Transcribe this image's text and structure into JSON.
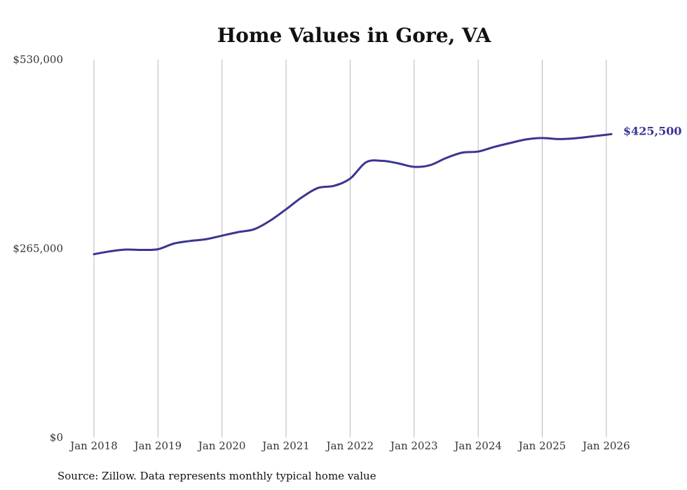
{
  "chart_data": {
    "type": "line",
    "title": "Home Values in Gore, VA",
    "xlabel": "",
    "ylabel": "",
    "ylim": [
      0,
      530000
    ],
    "yticks": [
      {
        "value": 0,
        "label": "$0"
      },
      {
        "value": 265000,
        "label": "$265,000"
      },
      {
        "value": 530000,
        "label": "$530,000"
      }
    ],
    "xticks": [
      {
        "value": 2018.0,
        "label": "Jan 2018"
      },
      {
        "value": 2019.0,
        "label": "Jan 2019"
      },
      {
        "value": 2020.0,
        "label": "Jan 2020"
      },
      {
        "value": 2021.0,
        "label": "Jan 2021"
      },
      {
        "value": 2022.0,
        "label": "Jan 2022"
      },
      {
        "value": 2023.0,
        "label": "Jan 2023"
      },
      {
        "value": 2024.0,
        "label": "Jan 2024"
      },
      {
        "value": 2025.0,
        "label": "Jan 2025"
      },
      {
        "value": 2026.0,
        "label": "Jan 2026"
      }
    ],
    "xlim": [
      2018.0,
      2026.1
    ],
    "grid": "vertical",
    "series": [
      {
        "name": "Typical home value",
        "color": "#3b3591",
        "x": [
          2018.0,
          2018.25,
          2018.5,
          2018.75,
          2019.0,
          2019.25,
          2019.5,
          2019.75,
          2020.0,
          2020.25,
          2020.5,
          2020.75,
          2021.0,
          2021.25,
          2021.5,
          2021.75,
          2022.0,
          2022.25,
          2022.5,
          2022.75,
          2023.0,
          2023.25,
          2023.5,
          2023.75,
          2024.0,
          2024.25,
          2024.5,
          2024.75,
          2025.0,
          2025.25,
          2025.5,
          2025.75,
          2026.0,
          2026.08
        ],
        "values": [
          257000,
          261000,
          263500,
          263000,
          264000,
          272000,
          275500,
          278000,
          283000,
          288000,
          292000,
          304000,
          320000,
          337000,
          350000,
          353000,
          363000,
          386000,
          388000,
          384500,
          379500,
          382000,
          392000,
          399500,
          401000,
          407500,
          413000,
          418000,
          420000,
          418500,
          419500,
          422000,
          424500,
          425500
        ]
      }
    ],
    "end_label": "$425,500",
    "source_note": "Source: Zillow. Data represents monthly typical home value"
  }
}
